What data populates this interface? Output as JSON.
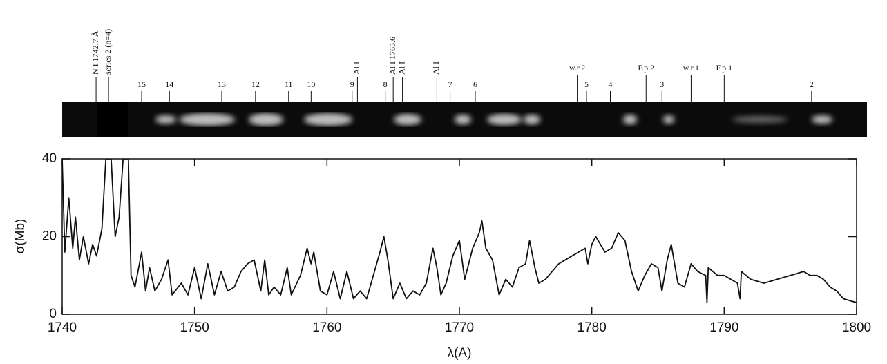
{
  "chart_data": {
    "type": "line",
    "x_label": "λ(A)",
    "y_label": "σ(Mb)",
    "xlim": [
      1740,
      1800
    ],
    "xticks": [
      1740,
      1750,
      1760,
      1770,
      1780,
      1790,
      1800
    ],
    "ylim": [
      0,
      40
    ],
    "yticks": [
      0,
      20,
      40
    ],
    "color": "#111111",
    "x": [
      1740,
      1740.2,
      1740.5,
      1740.8,
      1741,
      1741.3,
      1741.6,
      1742,
      1742.3,
      1742.6,
      1743,
      1743.3,
      1743.7,
      1744,
      1744.3,
      1744.6,
      1745,
      1745.2,
      1745.5,
      1746,
      1746.3,
      1746.6,
      1747,
      1747.5,
      1748,
      1748.3,
      1749,
      1749.5,
      1750,
      1750.5,
      1751,
      1751.5,
      1752,
      1752.5,
      1753,
      1753.5,
      1754,
      1754.5,
      1755,
      1755.3,
      1755.6,
      1756,
      1756.5,
      1757,
      1757.3,
      1758,
      1758.5,
      1758.8,
      1759,
      1759.5,
      1760,
      1760.5,
      1761,
      1761.5,
      1762,
      1762.5,
      1763,
      1763.5,
      1764,
      1764.3,
      1764.6,
      1765,
      1765.5,
      1766,
      1766.5,
      1767,
      1767.5,
      1768,
      1768.3,
      1768.6,
      1769,
      1769.5,
      1770,
      1770.4,
      1771,
      1771.5,
      1771.7,
      1772,
      1772.5,
      1773,
      1773.5,
      1774,
      1774.5,
      1775,
      1775.3,
      1775.7,
      1776,
      1776.5,
      1777,
      1777.5,
      1778,
      1778.5,
      1779,
      1779.5,
      1779.7,
      1780,
      1780.3,
      1781,
      1781.5,
      1782,
      1782.5,
      1783,
      1783.5,
      1784,
      1784.5,
      1785,
      1785.3,
      1785.7,
      1786,
      1786.5,
      1787,
      1787.5,
      1788,
      1788.6,
      1788.7,
      1788.8,
      1789.5,
      1790,
      1791,
      1791.2,
      1791.3,
      1792,
      1793,
      1794,
      1795,
      1796,
      1796.5,
      1797,
      1797.5,
      1798,
      1798.5,
      1799,
      1800
    ],
    "values": [
      40,
      16,
      30,
      17,
      25,
      14,
      20,
      13,
      18,
      15,
      22,
      40,
      40,
      20,
      25,
      40,
      40,
      10,
      7,
      16,
      6,
      12,
      6,
      9,
      14,
      5,
      8,
      5,
      12,
      4,
      13,
      5,
      11,
      6,
      7,
      11,
      13,
      14,
      6,
      14,
      5,
      7,
      5,
      12,
      5,
      10,
      17,
      13,
      16,
      6,
      5,
      11,
      4,
      11,
      4,
      6,
      4,
      10,
      16,
      20,
      14,
      4,
      8,
      4,
      6,
      5,
      8,
      17,
      12,
      5,
      8,
      15,
      19,
      9,
      17,
      21,
      24,
      17,
      14,
      5,
      9,
      7,
      12,
      13,
      19,
      12,
      8,
      9,
      11,
      13,
      14,
      15,
      16,
      17,
      13,
      18,
      20,
      16,
      17,
      21,
      19,
      11,
      6,
      10,
      13,
      12,
      6,
      14,
      18,
      8,
      7,
      13,
      11,
      10,
      3,
      12,
      10,
      10,
      8,
      4,
      11,
      9,
      8,
      9,
      10,
      11,
      10,
      10,
      9,
      7,
      6,
      4,
      3
    ],
    "annotations": [
      {
        "label": "15",
        "x": 1746.0
      },
      {
        "label": "14",
        "x": 1748.1
      },
      {
        "label": "13",
        "x": 1752.05
      },
      {
        "label": "12",
        "x": 1754.6
      },
      {
        "label": "11",
        "x": 1757.1
      },
      {
        "label": "10",
        "x": 1758.8
      },
      {
        "label": "9",
        "x": 1761.9
      },
      {
        "label": "8",
        "x": 1764.4
      },
      {
        "label": "7",
        "x": 1769.3
      },
      {
        "label": "6",
        "x": 1771.2
      },
      {
        "label": "w.r.2",
        "x": 1778.9
      },
      {
        "label": "5",
        "x": 1779.6
      },
      {
        "label": "4",
        "x": 1781.4
      },
      {
        "label": "F.p.2",
        "x": 1784.1
      },
      {
        "label": "3",
        "x": 1785.3
      },
      {
        "label": "w.r.1",
        "x": 1787.5
      },
      {
        "label": "F.p.1",
        "x": 1790.0
      },
      {
        "label": "2",
        "x": 1796.6
      }
    ],
    "rotated_annotations": [
      {
        "label": "N I 1742.7 Å",
        "x": 1742.56
      },
      {
        "label": "series 2 (n=4)",
        "x": 1743.5
      },
      {
        "label": "Al I",
        "x": 1762.3
      },
      {
        "label": "Al I 1765.6",
        "x": 1765.0
      },
      {
        "label": "Al I",
        "x": 1765.7
      },
      {
        "label": "Al I",
        "x": 1768.3
      }
    ]
  }
}
